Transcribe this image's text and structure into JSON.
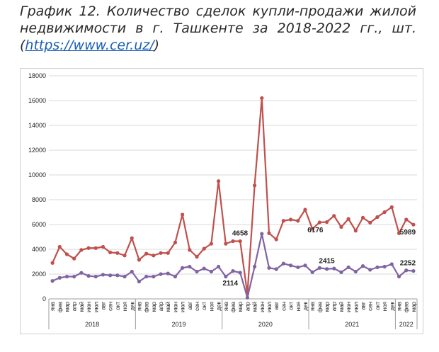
{
  "caption": {
    "line1": "График 12. Количество сделок купли-продажи жилой",
    "line2": "недвижимости в г. Ташкенте за 2018-2022 гг., шт.",
    "open": "(",
    "link": "https://www.cer.uz/",
    "close": ")"
  },
  "chart_data": {
    "type": "line",
    "ylim": [
      0,
      18000
    ],
    "yticks": [
      0,
      2000,
      4000,
      6000,
      8000,
      10000,
      12000,
      14000,
      16000,
      18000
    ],
    "grid": true,
    "categories": [
      "янв",
      "фев",
      "мар",
      "апр",
      "май",
      "июн",
      "июл",
      "авг",
      "сен",
      "окт",
      "ноя",
      "дек",
      "янв",
      "фев",
      "мар",
      "апр",
      "май",
      "июн",
      "июл",
      "авг",
      "сен",
      "окт",
      "ноя",
      "дек",
      "янв",
      "фев",
      "мар",
      "апр",
      "май",
      "июн",
      "июл",
      "авг",
      "сен",
      "окт",
      "ноя",
      "дек",
      "янв",
      "фев",
      "мар",
      "апр",
      "май",
      "июн",
      "июл",
      "авг",
      "сен",
      "окт",
      "ноя",
      "дек",
      "янв",
      "фев",
      "мар"
    ],
    "years": [
      {
        "label": "2018",
        "start": 0,
        "count": 12
      },
      {
        "label": "2019",
        "start": 12,
        "count": 12
      },
      {
        "label": "2020",
        "start": 24,
        "count": 12
      },
      {
        "label": "2021",
        "start": 36,
        "count": 12
      },
      {
        "label": "2022",
        "start": 48,
        "count": 3
      }
    ],
    "series": [
      {
        "color": "#c0504d",
        "values": [
          2900,
          4200,
          3600,
          3250,
          3950,
          4100,
          4100,
          4200,
          3750,
          3700,
          3500,
          4900,
          3150,
          3650,
          3500,
          3700,
          3700,
          4550,
          6800,
          3950,
          3400,
          4050,
          4450,
          9500,
          4450,
          4658,
          4650,
          400,
          9150,
          16200,
          5300,
          4800,
          6300,
          6400,
          6300,
          7200,
          5650,
          6176,
          6200,
          6700,
          5800,
          6450,
          5500,
          6550,
          6150,
          6600,
          7000,
          7400,
          5300,
          6400,
          5989
        ]
      },
      {
        "color": "#8064a2",
        "values": [
          1450,
          1700,
          1800,
          1800,
          2100,
          1850,
          1800,
          1950,
          1900,
          1900,
          1800,
          2200,
          1400,
          1800,
          1800,
          2000,
          2050,
          1800,
          2500,
          2600,
          2200,
          2450,
          2200,
          2600,
          1800,
          2250,
          2114,
          100,
          2600,
          5250,
          2500,
          2400,
          2850,
          2700,
          2550,
          2700,
          2150,
          2500,
          2415,
          2450,
          2150,
          2550,
          2200,
          2650,
          2350,
          2550,
          2600,
          2800,
          1800,
          2300,
          2252
        ]
      }
    ],
    "annotations": [
      {
        "text": "4658",
        "series": 0,
        "index": 25
      },
      {
        "text": "2114",
        "series": 1,
        "index": 26
      },
      {
        "text": "6176",
        "series": 0,
        "index": 37
      },
      {
        "text": "2415",
        "series": 1,
        "index": 38
      },
      {
        "text": "5989",
        "series": 0,
        "index": 50
      },
      {
        "text": "2252",
        "series": 1,
        "index": 50
      }
    ]
  }
}
